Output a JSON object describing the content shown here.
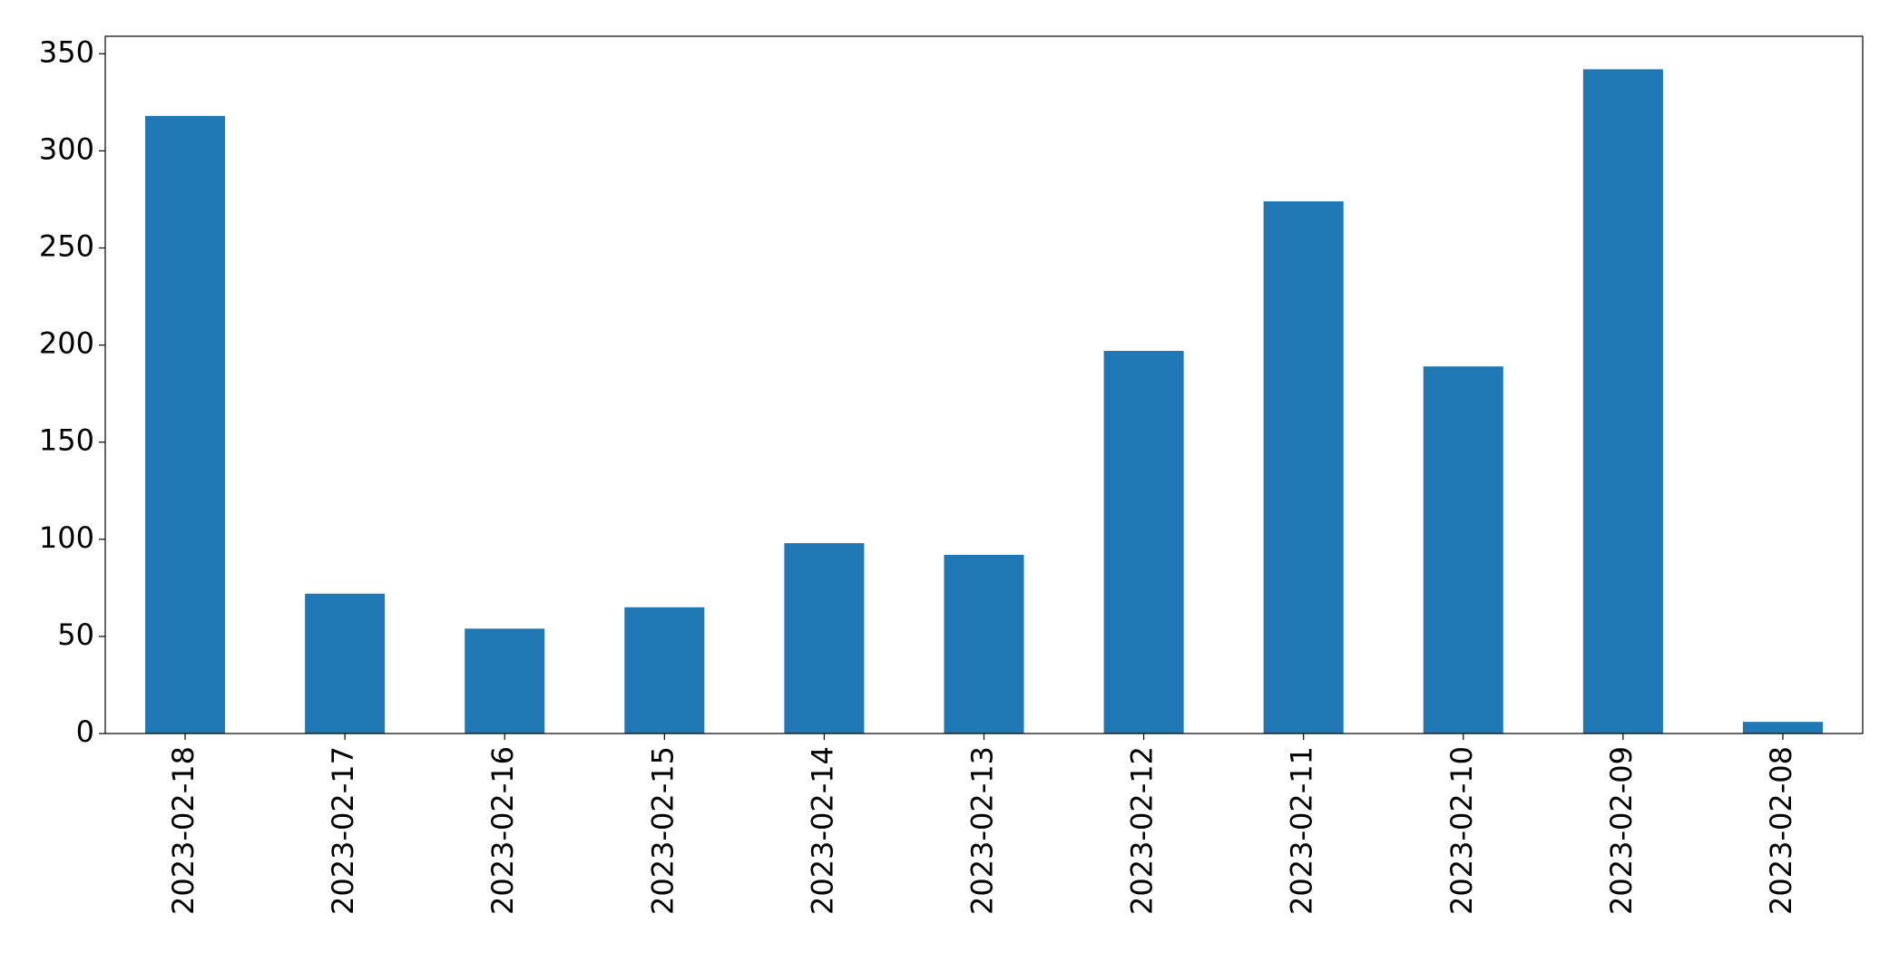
{
  "chart_data": {
    "type": "bar",
    "categories": [
      "2023-02-18",
      "2023-02-17",
      "2023-02-16",
      "2023-02-15",
      "2023-02-14",
      "2023-02-13",
      "2023-02-12",
      "2023-02-11",
      "2023-02-10",
      "2023-02-09",
      "2023-02-08"
    ],
    "values": [
      318,
      72,
      54,
      65,
      98,
      92,
      197,
      274,
      189,
      342,
      6
    ],
    "color": "#1f77b4",
    "ylim": [
      0,
      359
    ],
    "yticks": [
      0,
      50,
      100,
      150,
      200,
      250,
      300,
      350
    ],
    "grid": false
  }
}
